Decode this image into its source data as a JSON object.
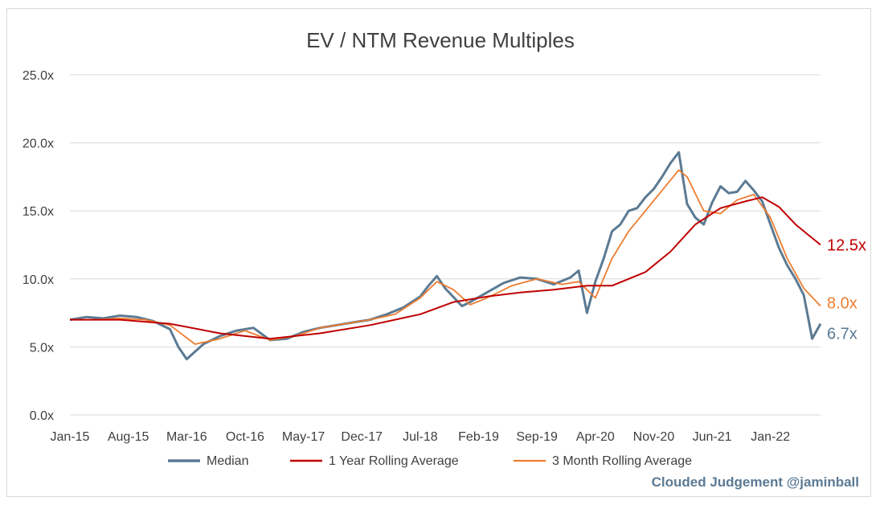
{
  "chart_data": {
    "type": "line",
    "title": "EV / NTM Revenue Multiples",
    "xlabel": "",
    "ylabel": "",
    "ylim": [
      0,
      25
    ],
    "y_ticks": [
      "0.0x",
      "5.0x",
      "10.0x",
      "15.0x",
      "20.0x",
      "25.0x"
    ],
    "x_ticks": [
      "Jan-15",
      "Aug-15",
      "Mar-16",
      "Oct-16",
      "May-17",
      "Dec-17",
      "Jul-18",
      "Feb-19",
      "Sep-19",
      "Apr-20",
      "Nov-20",
      "Jun-21",
      "Jan-22"
    ],
    "x_range": [
      "2015-01",
      "2022-07"
    ],
    "grid": true,
    "legend_position": "bottom",
    "series": [
      {
        "name": "Median",
        "color": "#5b7a93",
        "end_label": "6.7x",
        "x": [
          "2015-01",
          "2015-03",
          "2015-05",
          "2015-07",
          "2015-09",
          "2015-11",
          "2016-01",
          "2016-02",
          "2016-03",
          "2016-05",
          "2016-07",
          "2016-09",
          "2016-11",
          "2017-01",
          "2017-03",
          "2017-05",
          "2017-07",
          "2017-09",
          "2017-11",
          "2018-01",
          "2018-03",
          "2018-05",
          "2018-07",
          "2018-08",
          "2018-09",
          "2018-10",
          "2018-12",
          "2019-01",
          "2019-03",
          "2019-05",
          "2019-07",
          "2019-09",
          "2019-11",
          "2020-01",
          "2020-02",
          "2020-03",
          "2020-04",
          "2020-05",
          "2020-06",
          "2020-07",
          "2020-08",
          "2020-09",
          "2020-10",
          "2020-11",
          "2020-12",
          "2021-01",
          "2021-02",
          "2021-03",
          "2021-04",
          "2021-05",
          "2021-06",
          "2021-07",
          "2021-08",
          "2021-09",
          "2021-10",
          "2021-11",
          "2021-12",
          "2022-01",
          "2022-02",
          "2022-03",
          "2022-04",
          "2022-05",
          "2022-06",
          "2022-07"
        ],
        "values": [
          7.0,
          7.2,
          7.1,
          7.3,
          7.2,
          6.9,
          6.3,
          5.0,
          4.1,
          5.2,
          5.8,
          6.2,
          6.4,
          5.5,
          5.6,
          6.1,
          6.4,
          6.6,
          6.8,
          7.0,
          7.4,
          7.9,
          8.7,
          9.5,
          10.2,
          9.3,
          8.0,
          8.3,
          9.0,
          9.7,
          10.1,
          10.0,
          9.6,
          10.1,
          10.6,
          7.5,
          9.8,
          11.5,
          13.5,
          14.0,
          15.0,
          15.2,
          16.0,
          16.6,
          17.5,
          18.5,
          19.3,
          15.5,
          14.5,
          14.0,
          15.6,
          16.8,
          16.3,
          16.4,
          17.2,
          16.5,
          15.7,
          14.0,
          12.3,
          11.0,
          10.0,
          8.8,
          5.6,
          6.7
        ]
      },
      {
        "name": "1 Year Rolling Average",
        "color": "#c00000",
        "end_label": "12.5x",
        "x": [
          "2015-01",
          "2015-07",
          "2016-01",
          "2016-07",
          "2017-01",
          "2017-07",
          "2018-01",
          "2018-07",
          "2018-11",
          "2019-03",
          "2019-07",
          "2019-11",
          "2020-03",
          "2020-06",
          "2020-10",
          "2021-01",
          "2021-04",
          "2021-07",
          "2021-10",
          "2021-12",
          "2022-02",
          "2022-04",
          "2022-07"
        ],
        "values": [
          7.0,
          7.0,
          6.7,
          6.0,
          5.6,
          6.0,
          6.6,
          7.4,
          8.3,
          8.7,
          9.0,
          9.2,
          9.5,
          9.5,
          10.5,
          12.0,
          14.0,
          15.2,
          15.7,
          16.0,
          15.3,
          14.0,
          12.5
        ]
      },
      {
        "name": "3 Month Rolling Average",
        "color": "#ed7d31",
        "end_label": "8.0x",
        "x": [
          "2015-01",
          "2015-04",
          "2015-07",
          "2015-10",
          "2016-01",
          "2016-04",
          "2016-07",
          "2016-10",
          "2017-01",
          "2017-04",
          "2017-07",
          "2017-10",
          "2018-01",
          "2018-04",
          "2018-07",
          "2018-09",
          "2018-11",
          "2019-01",
          "2019-03",
          "2019-06",
          "2019-09",
          "2019-12",
          "2020-02",
          "2020-04",
          "2020-06",
          "2020-08",
          "2020-10",
          "2020-12",
          "2021-02",
          "2021-03",
          "2021-05",
          "2021-07",
          "2021-09",
          "2021-11",
          "2022-01",
          "2022-03",
          "2022-05",
          "2022-07"
        ],
        "values": [
          7.0,
          7.0,
          7.1,
          7.0,
          6.6,
          5.2,
          5.6,
          6.2,
          5.5,
          5.8,
          6.4,
          6.7,
          7.0,
          7.4,
          8.6,
          9.8,
          9.2,
          8.1,
          8.6,
          9.5,
          10.0,
          9.6,
          9.8,
          8.6,
          11.5,
          13.5,
          15.0,
          16.5,
          18.0,
          17.5,
          15.0,
          14.8,
          15.8,
          16.2,
          14.5,
          11.5,
          9.3,
          8.0
        ]
      }
    ]
  },
  "watermark": "Clouded Judgement @jaminball"
}
